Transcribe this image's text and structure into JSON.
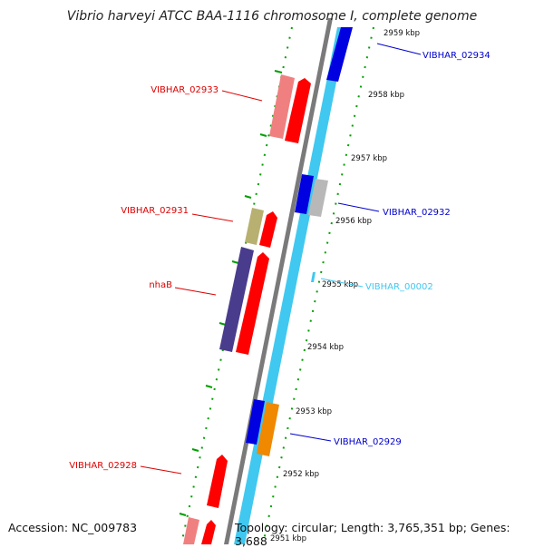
{
  "title": "Vibrio harveyi ATCC BAA-1116 chromosome I, complete genome",
  "accession": "Accession: NC_009783",
  "topology": "Topology: circular; Length: 3,765,351 bp; Genes: 3,688",
  "colors": {
    "backbone": "#808080",
    "gc_track": "#40c8f0",
    "forward_strong": "#ff0000",
    "forward_light": "#f08080",
    "reverse_blue": "#0000e0",
    "label_red": "#dd0000",
    "label_blue": "#0000cc",
    "label_cyan": "#40c8f0",
    "tick_green": "#00a000"
  },
  "ticks": [
    "2959 kbp",
    "2958 kbp",
    "2957 kbp",
    "2956 kbp",
    "2955 kbp",
    "2954 kbp",
    "2953 kbp",
    "2952 kbp",
    "2951 kbp"
  ],
  "gene_labels": {
    "g02933": "VIBHAR_02933",
    "g02934": "VIBHAR_02934",
    "g02931": "VIBHAR_02931",
    "g02932": "VIBHAR_02932",
    "nhaB": "nhaB",
    "g00002": "VIBHAR_00002",
    "g02929": "VIBHAR_02929",
    "g02928": "VIBHAR_02928"
  }
}
